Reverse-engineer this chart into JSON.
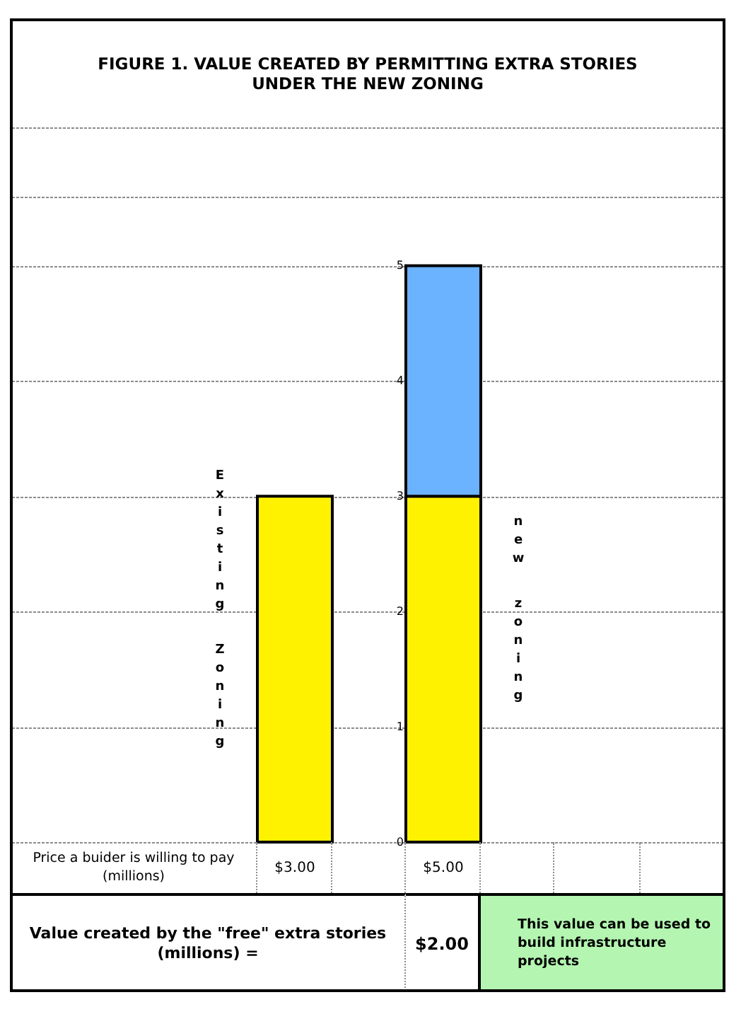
{
  "chart_data": {
    "type": "bar",
    "title": "FIGURE 1. VALUE CREATED BY PERMITTING EXTRA STORIES UNDER THE NEW ZONING",
    "categories": [
      "Existing Zoning",
      "new zoning"
    ],
    "stacked": true,
    "series": [
      {
        "color": "#fff200",
        "values": [
          3,
          3
        ]
      },
      {
        "color": "#6bb2ff",
        "values": [
          null,
          2
        ]
      }
    ],
    "ylim": [
      0,
      6.2
    ],
    "yticks": [
      0,
      1,
      2,
      3,
      4,
      5,
      {
        "value": 5.6,
        "label": null
      },
      {
        "value": 6.2,
        "label": null
      }
    ],
    "grid": "y",
    "totals": [
      "$3.00",
      "$5.00"
    ],
    "annotations": [
      "Price a buider is willing to pay (millions)",
      "Value created by the \"free\" extra stories (millions) =",
      "$2.00",
      "This value can be used to build infrastructure projects"
    ]
  }
}
